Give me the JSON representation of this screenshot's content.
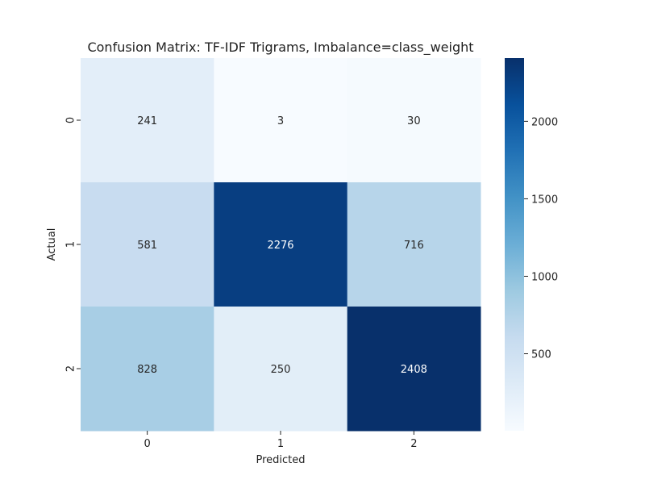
{
  "chart_data": {
    "type": "heatmap",
    "title": "Confusion Matrix: TF-IDF Trigrams, Imbalance=class_weight",
    "xlabel": "Predicted",
    "ylabel": "Actual",
    "x_categories": [
      "0",
      "1",
      "2"
    ],
    "y_categories": [
      "0",
      "1",
      "2"
    ],
    "values": [
      [
        241,
        3,
        30
      ],
      [
        581,
        2276,
        716
      ],
      [
        828,
        250,
        2408
      ]
    ],
    "colormap": "Blues",
    "color_range": [
      3,
      2408
    ],
    "colorbar_ticks": [
      "500",
      "1000",
      "1500",
      "2000"
    ],
    "colorbar_tick_values": [
      500,
      1000,
      1500,
      2000
    ],
    "annotation_colors": {
      "light_bg": "#262626",
      "dark_bg": "#ffffff"
    }
  }
}
